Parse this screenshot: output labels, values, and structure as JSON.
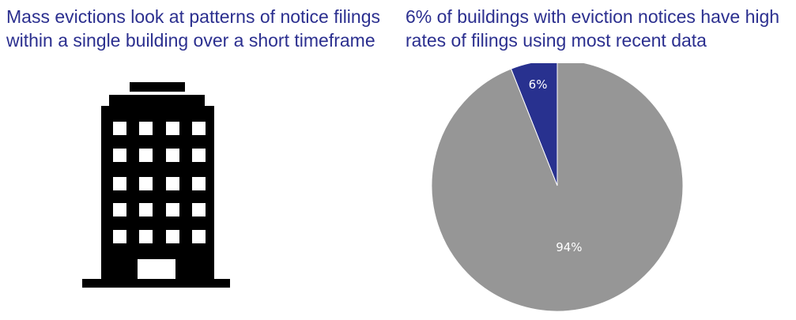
{
  "left_panel": {
    "heading": "Mass evictions look at patterns of notice filings\nwithin a single building over a short timeframe",
    "icon": "office-building-icon"
  },
  "right_panel": {
    "heading": "6% of buildings with eviction notices have high\nrates of filings using most recent data"
  },
  "colors": {
    "heading_text": "#2b2f8f",
    "slice_high": "#28318f",
    "slice_other": "#969696",
    "building": "#000000"
  },
  "chart_data": {
    "type": "pie",
    "title": "",
    "slices": [
      {
        "label": "6%",
        "value": 6,
        "color": "#28318f"
      },
      {
        "label": "94%",
        "value": 94,
        "color": "#969696"
      }
    ]
  }
}
